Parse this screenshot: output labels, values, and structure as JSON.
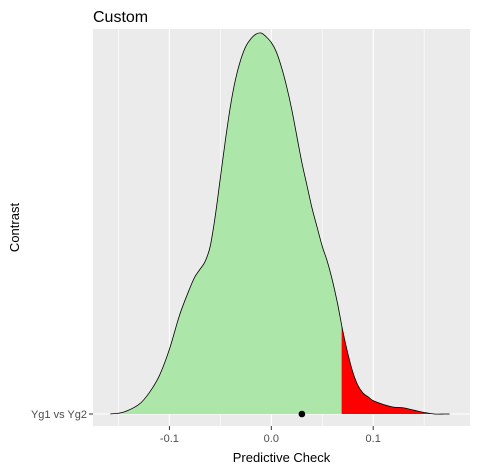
{
  "chart_data": {
    "type": "area",
    "title": "Custom",
    "xlabel": "Predictive Check",
    "ylabel": "Contrast",
    "xlim": [
      -0.175,
      0.195
    ],
    "x_ticks": [
      {
        "value": -0.1,
        "label": "-0.1"
      },
      {
        "value": 0.0,
        "label": "0.0"
      },
      {
        "value": 0.1,
        "label": "0.1"
      }
    ],
    "x_minor_ticks": [
      -0.15,
      -0.05,
      0.05,
      0.15
    ],
    "y_categories": [
      "Yg1 vs Yg2"
    ],
    "grid": true,
    "legend": "none",
    "density": {
      "x": [
        -0.158,
        -0.145,
        -0.13,
        -0.12,
        -0.11,
        -0.1,
        -0.09,
        -0.08,
        -0.075,
        -0.07,
        -0.065,
        -0.06,
        -0.055,
        -0.05,
        -0.045,
        -0.04,
        -0.035,
        -0.03,
        -0.025,
        -0.02,
        -0.015,
        -0.01,
        -0.005,
        0.0,
        0.005,
        0.01,
        0.015,
        0.02,
        0.025,
        0.03,
        0.035,
        0.04,
        0.045,
        0.05,
        0.055,
        0.06,
        0.065,
        0.07,
        0.075,
        0.08,
        0.085,
        0.09,
        0.095,
        0.1,
        0.11,
        0.12,
        0.13,
        0.14,
        0.15,
        0.16,
        0.17,
        0.175
      ],
      "y": [
        0.0,
        0.005,
        0.025,
        0.055,
        0.1,
        0.17,
        0.26,
        0.33,
        0.36,
        0.38,
        0.4,
        0.44,
        0.52,
        0.62,
        0.72,
        0.81,
        0.88,
        0.93,
        0.965,
        0.985,
        0.997,
        1.0,
        0.99,
        0.975,
        0.95,
        0.91,
        0.86,
        0.8,
        0.73,
        0.66,
        0.6,
        0.54,
        0.49,
        0.44,
        0.4,
        0.35,
        0.29,
        0.22,
        0.16,
        0.11,
        0.075,
        0.055,
        0.045,
        0.035,
        0.025,
        0.018,
        0.016,
        0.01,
        0.004,
        0.0,
        0.0,
        0.0
      ]
    },
    "tail_threshold": 0.069,
    "observed": {
      "x": 0.03,
      "category": "Yg1 vs Yg2"
    },
    "colors": {
      "panel": "#EBEBEB",
      "grid": "#FFFFFF",
      "fill_main": "#ACE6A8",
      "fill_tail": "#FF0000",
      "outline": "#000000",
      "point": "#000000"
    }
  }
}
